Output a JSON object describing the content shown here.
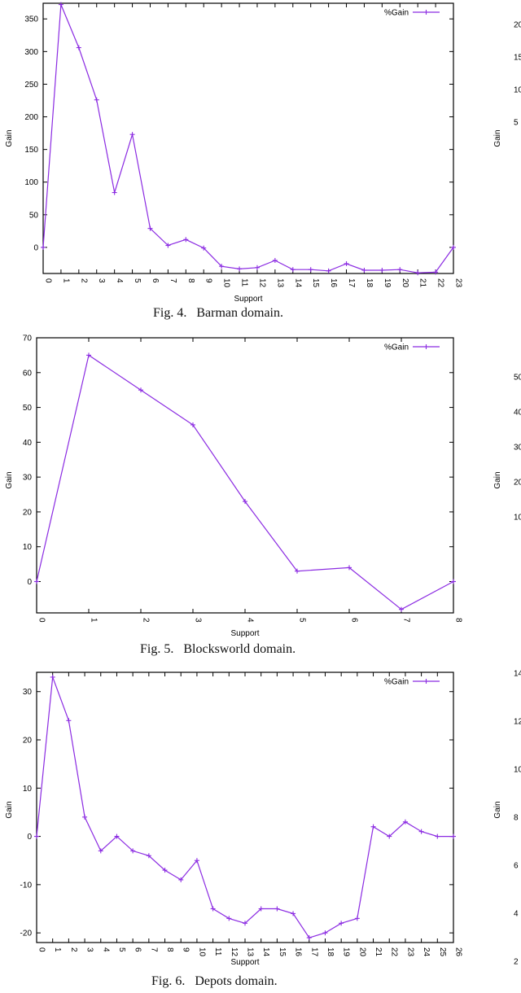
{
  "chart_data": [
    {
      "type": "line",
      "title": "",
      "caption": "Fig. 4.   Barman domain.",
      "xlabel": "Support",
      "ylabel": "Gain",
      "legend": [
        "%Gain"
      ],
      "legend_position": "top-right",
      "grid": false,
      "x": [
        0,
        1,
        2,
        3,
        4,
        5,
        6,
        7,
        8,
        9,
        10,
        11,
        12,
        13,
        14,
        15,
        16,
        17,
        18,
        19,
        20,
        21,
        22,
        23
      ],
      "series": [
        {
          "name": "%Gain",
          "values": [
            0,
            372,
            306,
            226,
            84,
            173,
            29,
            3,
            12,
            -1,
            -29,
            -33,
            -31,
            -20,
            -34,
            -34,
            -36,
            -25,
            -35,
            -35,
            -34,
            -39,
            -38,
            0
          ]
        }
      ],
      "xlim": [
        0,
        23
      ],
      "ylim": [
        -40,
        374
      ],
      "yticks": [
        0,
        50,
        100,
        150,
        200,
        250,
        300,
        350
      ],
      "xticks": [
        0,
        1,
        2,
        3,
        4,
        5,
        6,
        7,
        8,
        9,
        10,
        11,
        12,
        13,
        14,
        15,
        16,
        17,
        18,
        19,
        20,
        21,
        22,
        23
      ],
      "color": "#8b2be2"
    },
    {
      "type": "line",
      "title": "",
      "caption": "Fig. 5.   Blocksworld domain.",
      "xlabel": "Support",
      "ylabel": "Gain",
      "legend": [
        "%Gain"
      ],
      "legend_position": "top-right",
      "grid": false,
      "x": [
        0,
        1,
        2,
        3,
        4,
        5,
        6,
        7,
        8
      ],
      "series": [
        {
          "name": "%Gain",
          "values": [
            0,
            65,
            55,
            45,
            23,
            3,
            4,
            -8,
            0
          ]
        }
      ],
      "xlim": [
        0,
        8
      ],
      "ylim": [
        -9,
        70
      ],
      "yticks": [
        0,
        10,
        20,
        30,
        40,
        50,
        60,
        70
      ],
      "xticks": [
        0,
        1,
        2,
        3,
        4,
        5,
        6,
        7,
        8
      ],
      "color": "#8b2be2"
    },
    {
      "type": "line",
      "title": "",
      "caption": "Fig. 6.   Depots domain.",
      "xlabel": "Support",
      "ylabel": "Gain",
      "legend": [
        "%Gain"
      ],
      "legend_position": "top-right",
      "grid": false,
      "x": [
        0,
        1,
        2,
        3,
        4,
        5,
        6,
        7,
        8,
        9,
        10,
        11,
        12,
        13,
        14,
        15,
        16,
        17,
        18,
        19,
        20,
        21,
        22,
        23,
        24,
        25,
        26
      ],
      "series": [
        {
          "name": "%Gain",
          "values": [
            0,
            33,
            24,
            4,
            -3,
            0,
            -3,
            -4,
            -7,
            -9,
            -5,
            -15,
            -17,
            -18,
            -15,
            -15,
            -16,
            -21,
            -20,
            -18,
            -17,
            2,
            0,
            3,
            1,
            0,
            0
          ]
        }
      ],
      "xlim": [
        0,
        26
      ],
      "ylim": [
        -22,
        34
      ],
      "yticks": [
        -20,
        -10,
        0,
        10,
        20,
        30
      ],
      "xticks": [
        0,
        1,
        2,
        3,
        4,
        5,
        6,
        7,
        8,
        9,
        10,
        11,
        12,
        13,
        14,
        15,
        16,
        17,
        18,
        19,
        20,
        21,
        22,
        23,
        24,
        25,
        26
      ],
      "color": "#8b2be2"
    }
  ],
  "partial_right_charts": [
    {
      "ylabel": "Gain",
      "visible_tick_fragments": [
        "20",
        "15",
        "10",
        "5"
      ]
    },
    {
      "ylabel": "Gain",
      "visible_tick_fragments": [
        "50",
        "40",
        "30",
        "20",
        "10"
      ]
    },
    {
      "ylabel": "Gain",
      "visible_tick_fragments": [
        "14",
        "12",
        "10",
        "8",
        "6",
        "4",
        "2"
      ]
    }
  ]
}
